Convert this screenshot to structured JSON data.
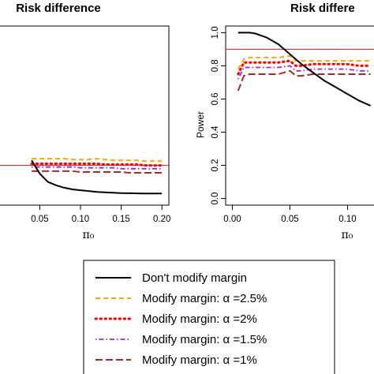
{
  "chart_data": [
    {
      "type": "line",
      "title": "Risk difference",
      "xlabel": "π₀",
      "ylabel": "",
      "xlim": [
        0.0,
        0.2
      ],
      "ylim": [
        0.0,
        1.0
      ],
      "x_ticks": [
        "0.05",
        "0.10",
        "0.15",
        "0.20"
      ],
      "y_ticks": [],
      "reference_line": 0.2,
      "x": [
        0.04,
        0.045,
        0.05,
        0.06,
        0.07,
        0.08,
        0.09,
        0.1,
        0.11,
        0.12,
        0.13,
        0.14,
        0.15,
        0.16,
        0.17,
        0.18,
        0.19,
        0.2
      ],
      "series": [
        {
          "name": "Don't modify margin",
          "color": "#000000",
          "dash": "solid",
          "values": [
            0.23,
            0.19,
            0.15,
            0.1,
            0.08,
            0.065,
            0.055,
            0.05,
            0.045,
            0.04,
            0.037,
            0.035,
            0.033,
            0.032,
            0.031,
            0.03,
            0.03,
            0.03
          ]
        },
        {
          "name": "Modify margin: α =2.5%",
          "color": "#ffa500",
          "dash": "dashed",
          "values": [
            0.24,
            0.24,
            0.24,
            0.24,
            0.24,
            0.24,
            0.235,
            0.235,
            0.235,
            0.24,
            0.235,
            0.23,
            0.23,
            0.23,
            0.23,
            0.225,
            0.225,
            0.225
          ]
        },
        {
          "name": "Modify margin: α =2%",
          "color": "#ff0000",
          "dash": "dotted",
          "values": [
            0.21,
            0.21,
            0.21,
            0.21,
            0.21,
            0.21,
            0.21,
            0.21,
            0.21,
            0.21,
            0.205,
            0.205,
            0.205,
            0.205,
            0.205,
            0.2,
            0.2,
            0.2
          ]
        },
        {
          "name": "Modify margin: α =1.5%",
          "color": "#a020f0",
          "dash": "dotdash",
          "values": [
            0.19,
            0.19,
            0.19,
            0.19,
            0.19,
            0.19,
            0.19,
            0.185,
            0.185,
            0.185,
            0.185,
            0.185,
            0.18,
            0.18,
            0.18,
            0.18,
            0.18,
            0.18
          ]
        },
        {
          "name": "Modify margin: α =1%",
          "color": "#a52a2a",
          "dash": "longdash",
          "values": [
            0.165,
            0.165,
            0.165,
            0.165,
            0.165,
            0.165,
            0.165,
            0.16,
            0.16,
            0.16,
            0.16,
            0.16,
            0.16,
            0.155,
            0.155,
            0.155,
            0.155,
            0.155
          ]
        }
      ]
    },
    {
      "type": "line",
      "title": "Risk differe",
      "xlabel": "π₀",
      "ylabel": "Power",
      "xlim": [
        -0.005,
        0.125
      ],
      "ylim": [
        0.0,
        1.0
      ],
      "x_ticks": [
        "0.00",
        "0.05",
        "0.10"
      ],
      "y_ticks": [
        "0.0",
        "0.2",
        "0.4",
        "0.6",
        "0.8",
        "1.0"
      ],
      "reference_line": 0.9,
      "x": [
        0.005,
        0.01,
        0.015,
        0.02,
        0.03,
        0.04,
        0.05,
        0.055,
        0.06,
        0.07,
        0.08,
        0.09,
        0.1,
        0.11,
        0.12
      ],
      "series": [
        {
          "name": "Don't modify margin",
          "color": "#000000",
          "dash": "solid",
          "values": [
            1.0,
            1.0,
            1.0,
            0.995,
            0.97,
            0.93,
            0.87,
            0.84,
            0.81,
            0.76,
            0.71,
            0.67,
            0.63,
            0.59,
            0.56
          ]
        },
        {
          "name": "Modify margin: α =2.5%",
          "color": "#ffa500",
          "dash": "dashed",
          "values": [
            0.78,
            0.84,
            0.85,
            0.85,
            0.85,
            0.85,
            0.86,
            0.83,
            0.83,
            0.83,
            0.83,
            0.83,
            0.83,
            0.83,
            0.83
          ]
        },
        {
          "name": "Modify margin: α =2%",
          "color": "#ff0000",
          "dash": "dotted",
          "values": [
            0.75,
            0.82,
            0.82,
            0.82,
            0.82,
            0.82,
            0.83,
            0.8,
            0.8,
            0.81,
            0.81,
            0.81,
            0.81,
            0.8,
            0.8
          ]
        },
        {
          "name": "Modify margin: α =1.5%",
          "color": "#a020f0",
          "dash": "dotdash",
          "values": [
            0.72,
            0.79,
            0.79,
            0.79,
            0.79,
            0.79,
            0.8,
            0.77,
            0.77,
            0.78,
            0.78,
            0.78,
            0.78,
            0.77,
            0.77
          ]
        },
        {
          "name": "Modify margin: α =1%",
          "color": "#a52a2a",
          "dash": "longdash",
          "values": [
            0.65,
            0.74,
            0.75,
            0.75,
            0.75,
            0.75,
            0.77,
            0.74,
            0.74,
            0.75,
            0.75,
            0.75,
            0.75,
            0.75,
            0.75
          ]
        }
      ]
    }
  ],
  "reference_line_color": "#cd3333",
  "legend": {
    "position": "bottom-center",
    "entries": [
      "Don't modify margin",
      "Modify margin: α =2.5%",
      "Modify margin: α =2%",
      "Modify margin: α =1.5%",
      "Modify margin: α =1%"
    ]
  }
}
